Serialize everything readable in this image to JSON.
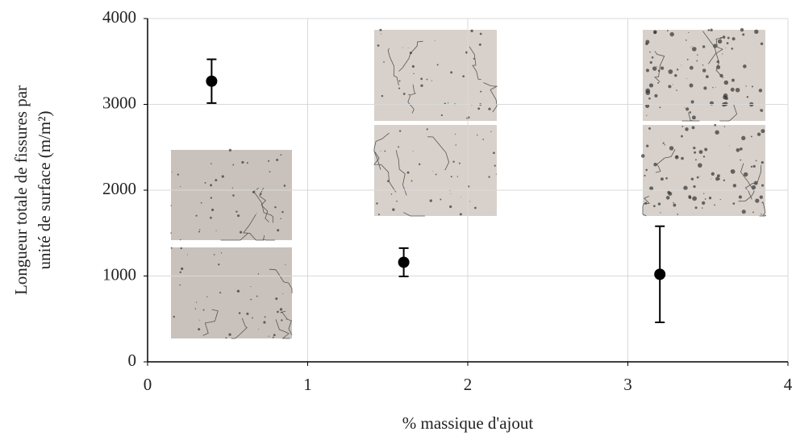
{
  "chart_data": {
    "type": "scatter",
    "xlabel": "% massique d'ajout",
    "ylabel": [
      "Longueur totale de fissures par",
      "unité de surface (m/m²)"
    ],
    "x": [
      0.4,
      1.6,
      3.2
    ],
    "values": [
      3270,
      1160,
      1020
    ],
    "errors": [
      255,
      165,
      560
    ],
    "color": "#000000",
    "xlim": [
      0,
      4
    ],
    "ylim": [
      0,
      4000
    ],
    "xticks": [
      0,
      1,
      2,
      3,
      4
    ],
    "yticks": [
      0,
      1000,
      2000,
      3000,
      4000
    ],
    "grid": true
  }
}
